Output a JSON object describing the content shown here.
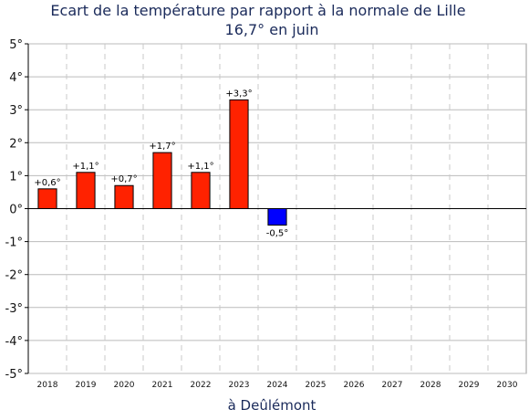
{
  "chart_data": {
    "type": "bar",
    "title": "Ecart de la température par rapport à la normale de Lille",
    "subtitle": "16,7° en juin",
    "xlabel": "à Deûlémont",
    "ylabel": "",
    "ylim": [
      -5,
      5
    ],
    "yticks": [
      "5°",
      "4°",
      "3°",
      "2°",
      "1°",
      "0°",
      "-1°",
      "-2°",
      "-3°",
      "-4°",
      "-5°"
    ],
    "categories": [
      "2018",
      "2019",
      "2020",
      "2021",
      "2022",
      "2023",
      "2024",
      "2025",
      "2026",
      "2027",
      "2028",
      "2029",
      "2030"
    ],
    "values": [
      0.6,
      1.1,
      0.7,
      1.7,
      1.1,
      3.3,
      -0.5,
      null,
      null,
      null,
      null,
      null,
      null
    ],
    "data_labels": [
      "+0,6°",
      "+1,1°",
      "+0,7°",
      "+1,7°",
      "+1,1°",
      "+3,3°",
      "-0,5°",
      "",
      "",
      "",
      "",
      "",
      ""
    ],
    "colors": {
      "positive": "#ff2200",
      "negative": "#0000ff",
      "grid": "#bbbbbb",
      "vgrid": "#c8c8c8"
    },
    "grid": true,
    "legend": "none"
  }
}
